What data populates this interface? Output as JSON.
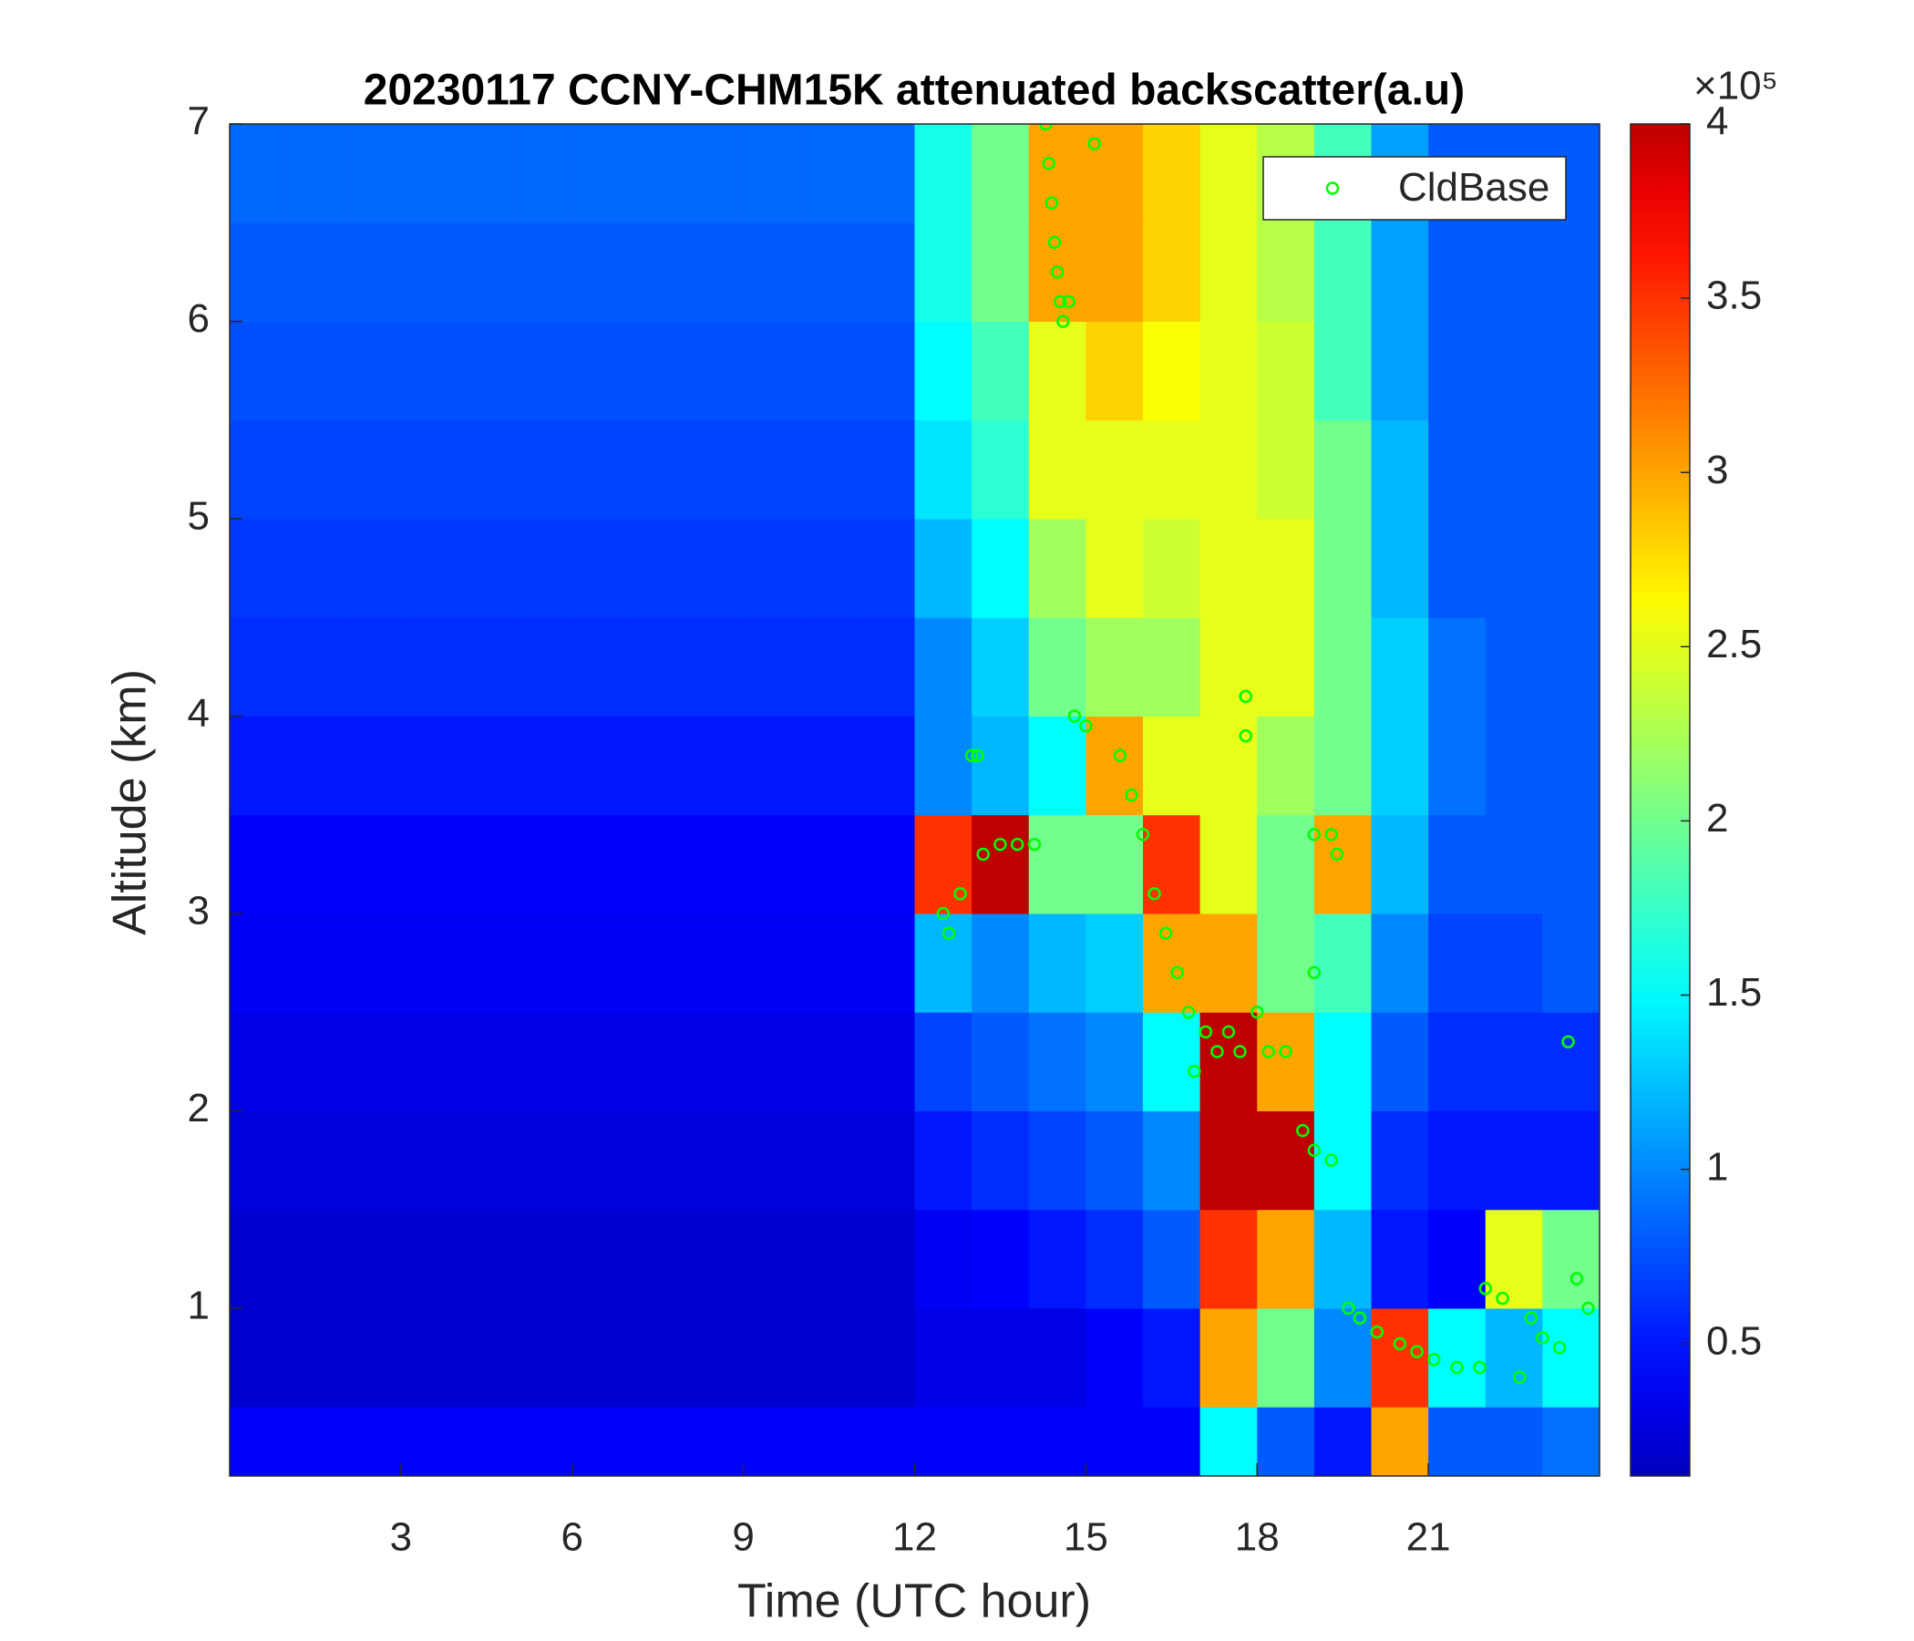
{
  "chart_data": {
    "type": "heatmap",
    "title": "20230117 CCNY-CHM15K attenuated backscatter(a.u)",
    "x_label": "Time (UTC hour)",
    "y_label": "Altitude (km)",
    "xlim": [
      0,
      24
    ],
    "ylim": [
      0.15,
      7
    ],
    "xticks": [
      3,
      6,
      9,
      12,
      15,
      18,
      21
    ],
    "yticks": [
      1,
      2,
      3,
      4,
      5,
      6,
      7
    ],
    "x_bins": [
      0,
      1,
      2,
      3,
      4,
      5,
      6,
      7,
      8,
      9,
      10,
      11,
      12,
      13,
      14,
      15,
      16,
      17,
      18,
      19,
      20,
      21,
      22,
      23,
      24
    ],
    "y_bins": [
      0.15,
      0.5,
      1,
      1.5,
      2,
      2.5,
      3,
      3.5,
      4,
      4.5,
      5,
      5.5,
      6,
      6.5,
      7
    ],
    "z": [
      [
        0.4,
        0.4,
        0.4,
        0.4,
        0.4,
        0.4,
        0.4,
        0.4,
        0.4,
        0.4,
        0.4,
        0.4,
        0.4,
        0.4,
        0.4,
        0.4,
        0.4,
        1.5,
        0.8,
        0.5,
        3.0,
        0.8,
        0.8,
        0.9
      ],
      [
        0.2,
        0.2,
        0.2,
        0.2,
        0.2,
        0.2,
        0.2,
        0.2,
        0.2,
        0.2,
        0.2,
        0.2,
        0.3,
        0.3,
        0.3,
        0.4,
        0.5,
        3.0,
        2.0,
        1.0,
        3.5,
        1.5,
        1.2,
        1.5
      ],
      [
        0.2,
        0.2,
        0.2,
        0.2,
        0.2,
        0.2,
        0.2,
        0.2,
        0.2,
        0.2,
        0.2,
        0.2,
        0.35,
        0.4,
        0.5,
        0.6,
        0.8,
        3.5,
        3.0,
        1.2,
        0.5,
        0.4,
        2.5,
        2.0
      ],
      [
        0.25,
        0.25,
        0.25,
        0.25,
        0.25,
        0.25,
        0.25,
        0.25,
        0.25,
        0.25,
        0.25,
        0.25,
        0.5,
        0.6,
        0.7,
        0.8,
        1.0,
        4,
        4,
        1.5,
        0.6,
        0.5,
        0.5,
        0.5
      ],
      [
        0.3,
        0.3,
        0.3,
        0.3,
        0.3,
        0.3,
        0.3,
        0.3,
        0.3,
        0.3,
        0.3,
        0.3,
        0.7,
        0.8,
        0.9,
        1.0,
        1.5,
        4,
        3.0,
        1.5,
        0.8,
        0.6,
        0.6,
        0.6
      ],
      [
        0.35,
        0.35,
        0.35,
        0.35,
        0.35,
        0.35,
        0.35,
        0.35,
        0.35,
        0.35,
        0.35,
        0.35,
        1.2,
        1.0,
        1.2,
        1.3,
        3.0,
        3.0,
        2.0,
        1.8,
        1.0,
        0.7,
        0.7,
        0.8
      ],
      [
        0.4,
        0.4,
        0.4,
        0.4,
        0.4,
        0.4,
        0.4,
        0.4,
        0.4,
        0.4,
        0.4,
        0.4,
        3.5,
        4,
        2.0,
        2.0,
        3.5,
        2.5,
        2.0,
        3.0,
        1.2,
        0.8,
        0.8,
        0.8
      ],
      [
        0.5,
        0.5,
        0.5,
        0.5,
        0.5,
        0.5,
        0.5,
        0.5,
        0.5,
        0.5,
        0.5,
        0.5,
        1.0,
        1.2,
        1.5,
        3.0,
        2.5,
        2.5,
        2.2,
        2.0,
        1.3,
        0.9,
        0.8,
        0.8
      ],
      [
        0.6,
        0.6,
        0.6,
        0.6,
        0.6,
        0.6,
        0.6,
        0.6,
        0.6,
        0.6,
        0.6,
        0.6,
        1.0,
        1.3,
        2.0,
        2.2,
        2.2,
        2.5,
        2.5,
        2.0,
        1.3,
        0.9,
        0.8,
        0.8
      ],
      [
        0.65,
        0.65,
        0.65,
        0.65,
        0.65,
        0.65,
        0.65,
        0.65,
        0.65,
        0.65,
        0.65,
        0.65,
        1.2,
        1.5,
        2.2,
        2.5,
        2.4,
        2.5,
        2.5,
        2.0,
        1.2,
        0.8,
        0.8,
        0.8
      ],
      [
        0.7,
        0.7,
        0.7,
        0.7,
        0.7,
        0.7,
        0.7,
        0.7,
        0.7,
        0.7,
        0.7,
        0.7,
        1.4,
        1.7,
        2.5,
        2.5,
        2.5,
        2.5,
        2.4,
        2.0,
        1.2,
        0.8,
        0.8,
        0.8
      ],
      [
        0.75,
        0.75,
        0.75,
        0.75,
        0.75,
        0.75,
        0.75,
        0.75,
        0.75,
        0.75,
        0.75,
        0.75,
        1.5,
        1.8,
        2.5,
        2.8,
        2.6,
        2.5,
        2.4,
        1.8,
        1.1,
        0.8,
        0.8,
        0.8
      ],
      [
        0.8,
        0.8,
        0.8,
        0.8,
        0.8,
        0.8,
        0.8,
        0.8,
        0.8,
        0.8,
        0.8,
        0.8,
        1.6,
        2.0,
        3.0,
        3.0,
        2.8,
        2.5,
        2.3,
        1.8,
        1.1,
        0.8,
        0.8,
        0.8
      ],
      [
        0.85,
        0.85,
        0.85,
        0.85,
        0.85,
        0.85,
        0.85,
        0.85,
        0.85,
        0.85,
        0.85,
        0.85,
        1.6,
        2.0,
        3.0,
        3.0,
        2.8,
        2.5,
        2.3,
        1.8,
        1.1,
        0.8,
        0.8,
        0.8
      ]
    ],
    "clim": [
      0.12,
      4
    ],
    "colorbar_ticks": [
      0.5,
      1,
      1.5,
      2,
      2.5,
      3,
      3.5,
      4
    ],
    "colorbar_multiplier": "×10⁵",
    "colormap": "jet",
    "legend_position": "upper right",
    "series": [
      {
        "name": "CldBase",
        "color": "#00ff00",
        "x": [
          12.5,
          12.6,
          12.8,
          13.0,
          13.1,
          13.2,
          13.5,
          13.8,
          14.1,
          14.3,
          14.35,
          14.4,
          14.45,
          14.5,
          14.55,
          14.6,
          14.7,
          14.8,
          15.0,
          15.15,
          15.6,
          15.8,
          16.0,
          16.2,
          16.4,
          16.6,
          16.8,
          16.9,
          17.1,
          17.3,
          17.5,
          17.7,
          17.8,
          17.8,
          18.0,
          18.2,
          18.5,
          18.8,
          19.0,
          19.0,
          19.3,
          19.0,
          19.3,
          19.4,
          19.6,
          19.8,
          20.1,
          20.5,
          20.8,
          21.1,
          21.5,
          21.9,
          22.0,
          22.3,
          22.6,
          22.8,
          23.0,
          23.3,
          23.45,
          23.6,
          23.8
        ],
        "y": [
          3.0,
          2.9,
          3.1,
          3.8,
          3.8,
          3.3,
          3.35,
          3.35,
          3.35,
          7.0,
          6.8,
          6.6,
          6.4,
          6.25,
          6.1,
          6.0,
          6.1,
          4.0,
          3.95,
          6.9,
          3.8,
          3.6,
          3.4,
          3.1,
          2.9,
          2.7,
          2.5,
          2.2,
          2.4,
          2.3,
          2.4,
          2.3,
          4.1,
          3.9,
          2.5,
          2.3,
          2.3,
          1.9,
          2.7,
          1.8,
          1.75,
          3.4,
          3.4,
          3.3,
          1.0,
          0.95,
          0.88,
          0.82,
          0.78,
          0.74,
          0.7,
          0.7,
          1.1,
          1.05,
          0.65,
          0.95,
          0.85,
          0.8,
          2.35,
          1.15,
          1.0
        ]
      }
    ]
  }
}
